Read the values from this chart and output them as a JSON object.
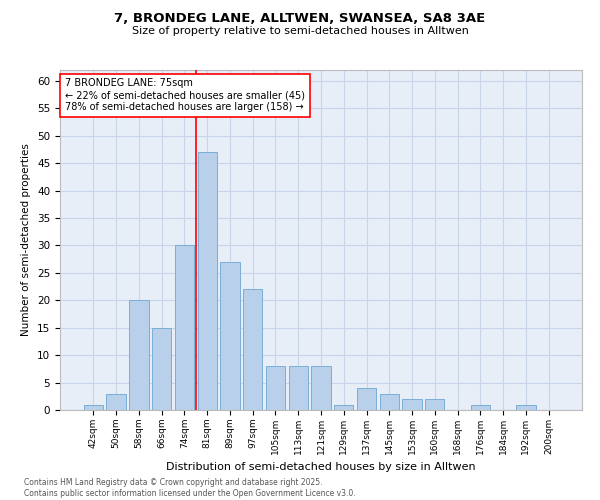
{
  "title1": "7, BRONDEG LANE, ALLTWEN, SWANSEA, SA8 3AE",
  "title2": "Size of property relative to semi-detached houses in Alltwen",
  "xlabel": "Distribution of semi-detached houses by size in Alltwen",
  "ylabel": "Number of semi-detached properties",
  "categories": [
    "42sqm",
    "50sqm",
    "58sqm",
    "66sqm",
    "74sqm",
    "81sqm",
    "89sqm",
    "97sqm",
    "105sqm",
    "113sqm",
    "121sqm",
    "129sqm",
    "137sqm",
    "145sqm",
    "153sqm",
    "160sqm",
    "168sqm",
    "176sqm",
    "184sqm",
    "192sqm",
    "200sqm"
  ],
  "values": [
    1,
    3,
    20,
    15,
    30,
    47,
    27,
    22,
    8,
    8,
    8,
    1,
    4,
    3,
    2,
    2,
    0,
    1,
    0,
    1,
    0
  ],
  "bar_color": "#b8d0ea",
  "bar_edge_color": "#7aaed6",
  "grid_color": "#c8d4e8",
  "background_color": "#e8eef8",
  "red_line_x": 4.5,
  "annotation_title": "7 BRONDEG LANE: 75sqm",
  "annotation_line1": "← 22% of semi-detached houses are smaller (45)",
  "annotation_line2": "78% of semi-detached houses are larger (158) →",
  "footer": "Contains HM Land Registry data © Crown copyright and database right 2025.\nContains public sector information licensed under the Open Government Licence v3.0.",
  "ylim": [
    0,
    62
  ],
  "yticks": [
    0,
    5,
    10,
    15,
    20,
    25,
    30,
    35,
    40,
    45,
    50,
    55,
    60
  ]
}
